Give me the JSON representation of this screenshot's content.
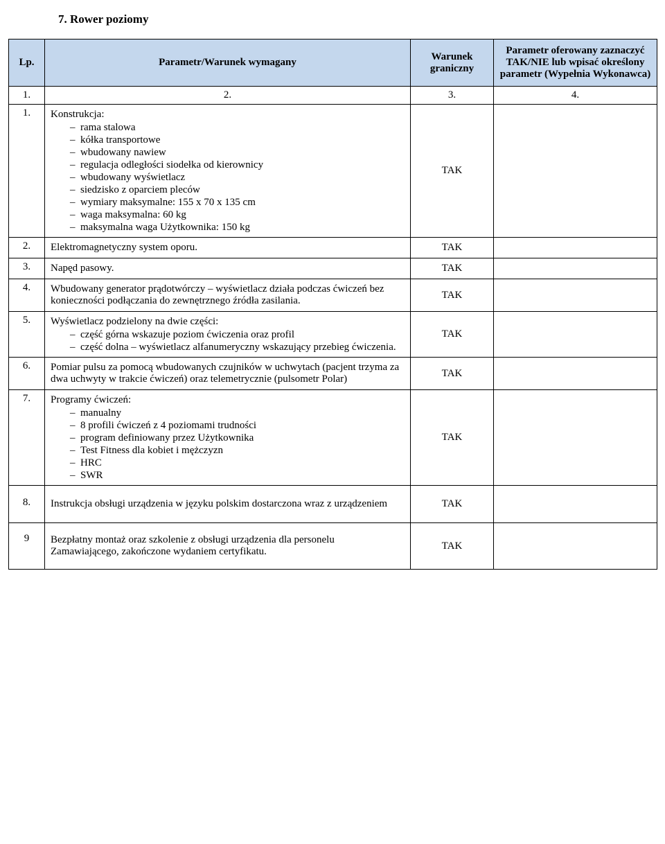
{
  "title": "7. Rower poziomy",
  "headers": {
    "lp": "Lp.",
    "param": "Parametr/Warunek wymagany",
    "warunek": "Warunek graniczny",
    "oferowany": "Parametr oferowany zaznaczyć TAK/NIE lub wpisać określony parametr (Wypełnia Wykonawca)"
  },
  "num_row": {
    "c1": "1.",
    "c2": "2.",
    "c3": "3.",
    "c4": "4."
  },
  "rows": [
    {
      "lp": "1.",
      "intro": "Konstrukcja:",
      "bullets": [
        "rama stalowa",
        "kółka transportowe",
        "wbudowany nawiew",
        "regulacja odległości siodełka od kierownicy",
        "wbudowany wyświetlacz",
        "siedzisko z oparciem pleców",
        "wymiary maksymalne: 155 x 70 x 135 cm",
        "waga maksymalna: 60 kg",
        "maksymalna waga Użytkownika: 150 kg"
      ],
      "war": "TAK"
    },
    {
      "lp": "2.",
      "text": "Elektromagnetyczny system oporu.",
      "war": "TAK"
    },
    {
      "lp": "3.",
      "text": "Napęd pasowy.",
      "war": "TAK"
    },
    {
      "lp": "4.",
      "text": "Wbudowany generator prądotwórczy – wyświetlacz działa podczas ćwiczeń bez konieczności podłączania do zewnętrznego źródła zasilania.",
      "war": "TAK"
    },
    {
      "lp": "5.",
      "intro": "Wyświetlacz podzielony na dwie części:",
      "bullets": [
        "część górna wskazuje poziom ćwiczenia oraz profil",
        "część dolna – wyświetlacz alfanumeryczny wskazujący przebieg ćwiczenia."
      ],
      "war": "TAK"
    },
    {
      "lp": "6.",
      "text": "Pomiar pulsu za pomocą wbudowanych czujników w uchwytach (pacjent trzyma za dwa uchwyty w trakcie ćwiczeń) oraz telemetrycznie (pulsometr Polar)",
      "war": "TAK"
    },
    {
      "lp": "7.",
      "intro": "Programy ćwiczeń:",
      "bullets": [
        "manualny",
        "8 profili ćwiczeń z 4 poziomami trudności",
        "program definiowany przez Użytkownika",
        "Test Fitness dla kobiet i mężczyzn",
        "HRC",
        "SWR"
      ],
      "war": "TAK"
    },
    {
      "lp": "8.",
      "text": "Instrukcja obsługi urządzenia w języku polskim dostarczona wraz z urządzeniem",
      "war": "TAK",
      "pad": "16px"
    },
    {
      "lp": "9",
      "text": "Bezpłatny montaż oraz szkolenie z obsługi urządzenia dla personelu Zamawiającego, zakończone wydaniem certyfikatu.",
      "war": "TAK",
      "pad": "14px"
    }
  ]
}
